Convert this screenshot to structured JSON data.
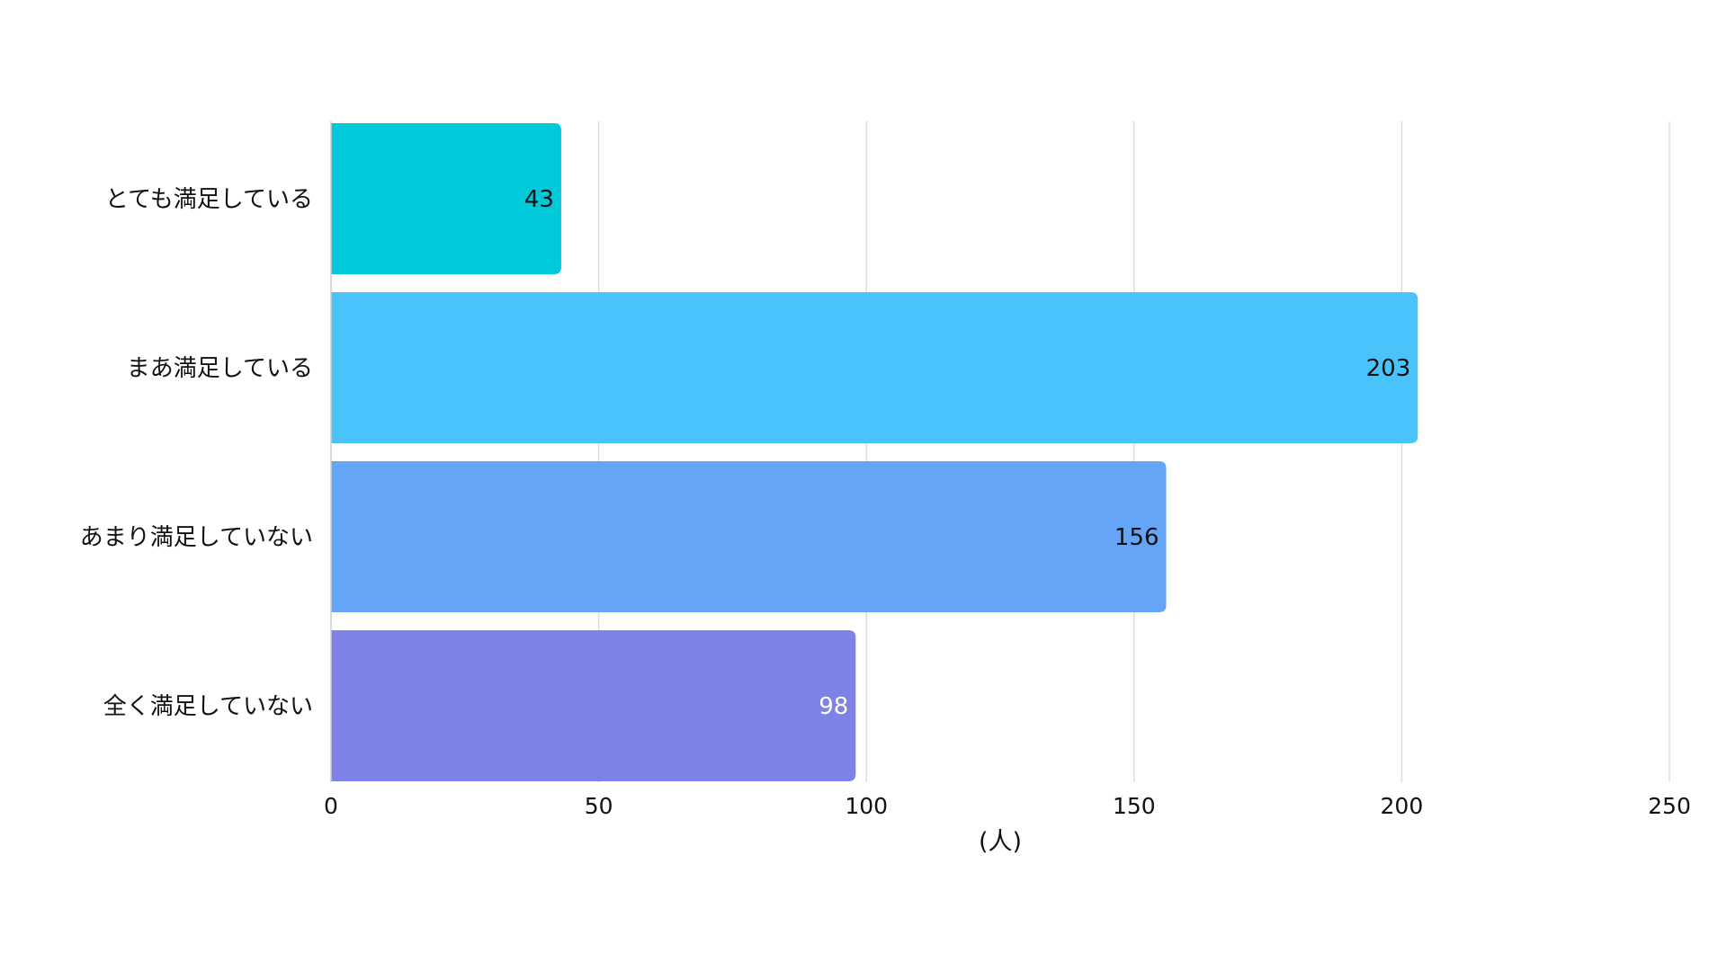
{
  "chart_data": {
    "type": "bar",
    "orientation": "horizontal",
    "categories": [
      "とても満足している",
      "まあ満足している",
      "あまり満足していない",
      "全く満足していない"
    ],
    "values": [
      43,
      203,
      156,
      98
    ],
    "colors": [
      "#00c9da",
      "#4ac3fb",
      "#64a5f8",
      "#7e81e6"
    ],
    "label_colors": [
      "#111111",
      "#111111",
      "#111111",
      "#ffffff"
    ],
    "xlabel": "(人)",
    "ylabel": "",
    "title": "",
    "xlim": [
      0,
      250
    ],
    "xticks": [
      0,
      50,
      100,
      150,
      200,
      250
    ],
    "grid": true,
    "grid_color": "#dddddd"
  }
}
